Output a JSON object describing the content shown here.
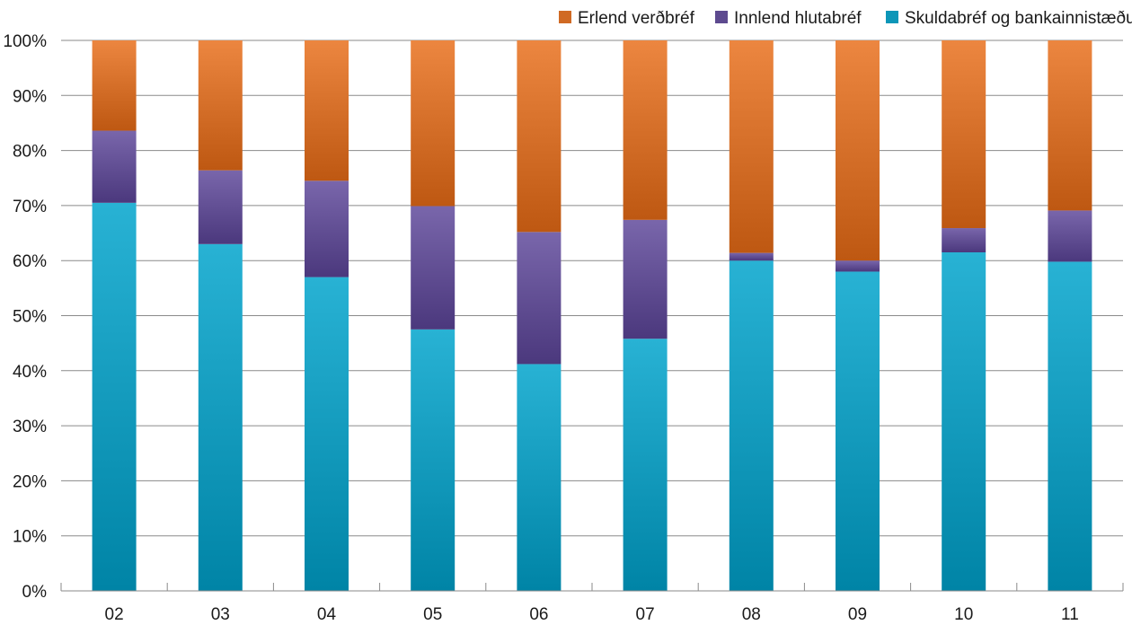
{
  "chart_data": {
    "type": "bar",
    "stacked": true,
    "categories": [
      "02",
      "03",
      "04",
      "05",
      "06",
      "07",
      "08",
      "09",
      "10",
      "11"
    ],
    "series": [
      {
        "name": "Skuldabréf og bankainnistæður",
        "color": "#0c96b8",
        "values": [
          70.5,
          63,
          57,
          47.5,
          41.2,
          45.8,
          60,
          58,
          61.5,
          59.8
        ]
      },
      {
        "name": "Innlend hlutabréf",
        "color": "#5d4a8f",
        "values": [
          13.1,
          13.4,
          17.5,
          22.4,
          24,
          21.6,
          1.4,
          2,
          4.4,
          9.3
        ]
      },
      {
        "name": "Erlend verðbréf",
        "color": "#d06a24",
        "values": [
          16.4,
          23.6,
          25.5,
          30.1,
          34.8,
          32.6,
          38.6,
          40,
          34.1,
          30.9
        ]
      }
    ],
    "y_ticks": [
      "0%",
      "10%",
      "20%",
      "30%",
      "40%",
      "50%",
      "60%",
      "70%",
      "80%",
      "90%",
      "100%"
    ],
    "ylim": [
      0,
      100
    ],
    "grid": true,
    "legend": {
      "placement": "top-right",
      "order": [
        "Erlend verðbréf",
        "Innlend hlutabréf",
        "Skuldabréf og bankainnistæður"
      ]
    }
  }
}
